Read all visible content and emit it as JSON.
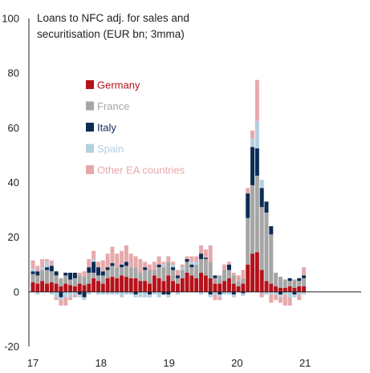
{
  "chart_data": {
    "type": "bar",
    "stacked": true,
    "title_lines": [
      "Loans to NFC adj. for sales and",
      "securitisation (EUR bn; 3mma)"
    ],
    "ylim": [
      -20,
      100
    ],
    "y_ticks": [
      "100",
      "80",
      "60",
      "40",
      "20",
      "0",
      "-20"
    ],
    "x_ticks": [
      "17",
      "18",
      "19",
      "20",
      "21"
    ],
    "legend_position": "upper-left inside",
    "grid": false,
    "series": [
      {
        "name": "Germany",
        "color": "#b5121b",
        "values": [
          3.5,
          3,
          4,
          3,
          3.5,
          3,
          2,
          3,
          2.5,
          2,
          3,
          2.5,
          3,
          5,
          4,
          3,
          5,
          5.5,
          5,
          6,
          5.5,
          5,
          5,
          4,
          4,
          3,
          6,
          5,
          4,
          6,
          4,
          3,
          5,
          7,
          6,
          5,
          7,
          6,
          5,
          3,
          3,
          4,
          5,
          3,
          2,
          3,
          10,
          14,
          14.5,
          8,
          4,
          3,
          2,
          1.5,
          1.5,
          2,
          1.5,
          2,
          2
        ]
      },
      {
        "name": "France",
        "color": "#a6a6a6",
        "values": [
          3,
          3,
          4,
          5,
          4,
          3,
          3,
          3,
          2,
          3,
          3,
          3,
          4,
          2,
          2,
          3,
          3,
          4,
          4,
          3,
          4,
          4,
          4,
          3,
          4,
          5,
          2,
          4,
          5,
          5,
          4,
          2,
          3,
          4,
          3,
          5,
          5,
          6,
          6,
          2,
          3,
          4,
          3,
          3,
          2,
          2,
          17,
          25,
          28,
          23,
          25,
          18,
          5,
          4,
          3,
          2,
          3,
          2,
          3
        ]
      },
      {
        "name": "Italy",
        "color": "#0b2c55",
        "values": [
          1,
          1.5,
          0,
          1,
          2,
          1.5,
          -2,
          1,
          2.5,
          2,
          -1,
          -2,
          2,
          4,
          3,
          1.5,
          1,
          1,
          0,
          1,
          1.5,
          0,
          -1,
          0,
          1,
          -1,
          0,
          1,
          -1,
          -1,
          1,
          1,
          0,
          1,
          1,
          0,
          2,
          0.5,
          -1,
          1,
          -1,
          0,
          2,
          -1,
          0,
          -0.5,
          9,
          14,
          10,
          7,
          4,
          3,
          0,
          -1,
          0,
          1,
          -1,
          1,
          1
        ]
      },
      {
        "name": "Spain",
        "color": "#b4cfe0",
        "values": [
          1,
          -1,
          1,
          2,
          -1,
          -2,
          -1,
          -2,
          -2,
          -1,
          -1,
          -1,
          -1,
          1,
          -1,
          -1,
          -1,
          -1,
          -1,
          -2,
          -1,
          -1,
          -1,
          -2,
          -2,
          -1,
          -1,
          -2,
          1,
          -1,
          1,
          -1,
          1,
          0,
          1,
          1,
          -1,
          0,
          -1,
          -1,
          -1,
          -1,
          -1,
          -1,
          0,
          -1,
          0,
          3,
          10,
          3,
          -1,
          -1,
          -1,
          -1,
          -1,
          -2,
          -1,
          -1,
          -1
        ]
      },
      {
        "name": "Other EA countries",
        "color": "#e6a9ab",
        "values": [
          3,
          2,
          3,
          1,
          2,
          -1,
          -2,
          -3,
          -1,
          -1,
          1,
          2,
          3,
          3,
          2,
          4,
          5,
          6,
          5,
          5,
          6,
          5,
          4,
          5,
          2,
          2,
          3,
          3,
          1,
          2,
          1,
          2,
          1,
          1,
          2,
          2,
          3,
          3,
          6,
          -2,
          -1,
          2,
          1,
          1,
          2,
          3,
          2,
          3,
          15,
          -2,
          0,
          -3,
          -2,
          -2,
          -4,
          -3,
          0,
          -2,
          3
        ]
      }
    ]
  }
}
